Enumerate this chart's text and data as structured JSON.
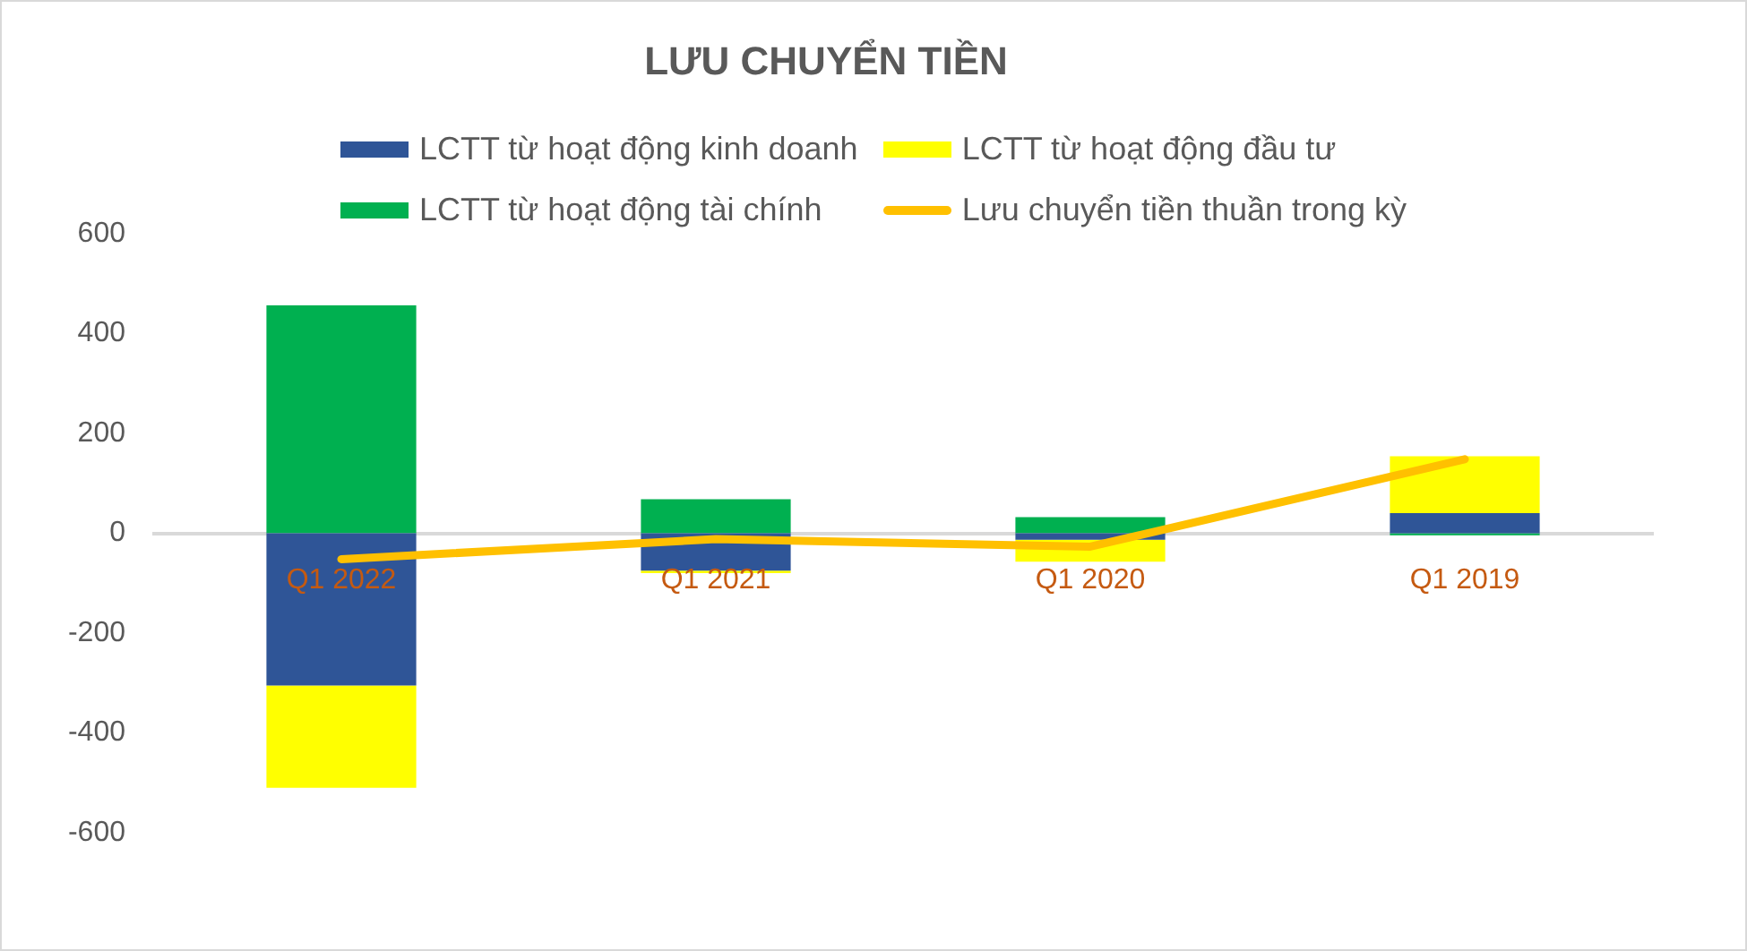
{
  "chart_data": {
    "type": "bar",
    "title": "LƯU CHUYỂN TIỀN",
    "categories": [
      "Q1 2022",
      "Q1 2021",
      "Q1 2020",
      "Q1 2019"
    ],
    "stacked": true,
    "series": [
      {
        "name": "LCTT từ hoạt động kinh doanh",
        "color": "#2f5597",
        "values": [
          -305,
          -75,
          -13,
          40
        ]
      },
      {
        "name": "LCTT từ hoạt động đầu tư",
        "color": "#ffff00",
        "values": [
          -205,
          -5,
          -44,
          114
        ]
      },
      {
        "name": "LCTT từ hoạt động tài chính",
        "color": "#00b050",
        "values": [
          456,
          68,
          32,
          -4
        ]
      },
      {
        "name": "Lưu chuyển tiền thuần trong kỳ",
        "type": "line",
        "color": "#ffc000",
        "values": [
          -52,
          -12,
          -27,
          148
        ]
      }
    ],
    "ylim": [
      -600,
      600
    ],
    "yticks": [
      -600,
      -400,
      -200,
      0,
      200,
      400,
      600
    ],
    "grid": false,
    "legend": "top"
  }
}
